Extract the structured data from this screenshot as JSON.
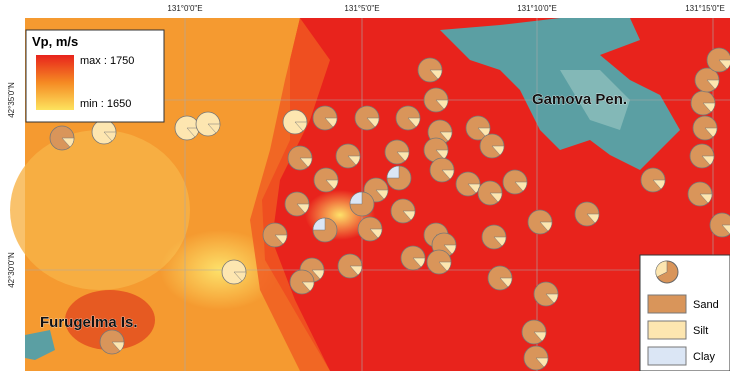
{
  "graticule": {
    "longitudes": [
      "131°0'0\"E",
      "131°5'0\"E",
      "131°10'0\"E",
      "131°15'0\"E"
    ],
    "latitudes": [
      "42°35'0\"N",
      "42°30'0\"N"
    ]
  },
  "legend_vp": {
    "title": "Vp, m/s",
    "max_label": "max : 1750",
    "min_label": "min : 1650"
  },
  "places": {
    "peninsula": "Gamova Pen.",
    "island": "Furugelma Is."
  },
  "legend_sediment": {
    "items": [
      "Sand",
      "Silt",
      "Clay"
    ]
  }
}
